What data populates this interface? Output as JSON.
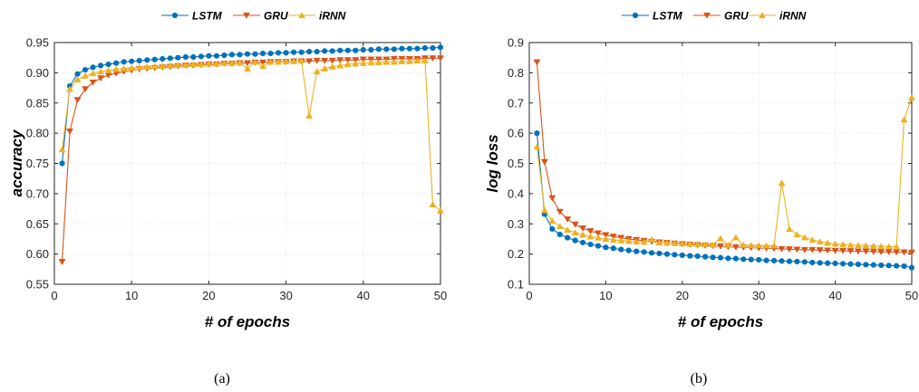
{
  "captions": [
    "(a)",
    "(b)"
  ],
  "chart_data": [
    {
      "type": "line",
      "xlabel": "# of epochs",
      "ylabel": "accuracy",
      "xlim": [
        0,
        50
      ],
      "ylim": [
        0.55,
        0.95
      ],
      "xticks": [
        0,
        10,
        20,
        30,
        40,
        50
      ],
      "yticks": [
        0.55,
        0.6,
        0.65,
        0.7,
        0.75,
        0.8,
        0.85,
        0.9,
        0.95
      ],
      "grid": true,
      "legend": "top-center",
      "x": [
        1,
        2,
        3,
        4,
        5,
        6,
        7,
        8,
        9,
        10,
        11,
        12,
        13,
        14,
        15,
        16,
        17,
        18,
        19,
        20,
        21,
        22,
        23,
        24,
        25,
        26,
        27,
        28,
        29,
        30,
        31,
        32,
        33,
        34,
        35,
        36,
        37,
        38,
        39,
        40,
        41,
        42,
        43,
        44,
        45,
        46,
        47,
        48,
        49,
        50
      ],
      "series": [
        {
          "name": "LSTM",
          "color": "#0072BD",
          "marker": "circle",
          "values": [
            0.75,
            0.878,
            0.898,
            0.905,
            0.909,
            0.912,
            0.914,
            0.916,
            0.918,
            0.919,
            0.92,
            0.921,
            0.922,
            0.923,
            0.924,
            0.925,
            0.926,
            0.926,
            0.927,
            0.928,
            0.928,
            0.929,
            0.93,
            0.93,
            0.931,
            0.931,
            0.932,
            0.932,
            0.933,
            0.933,
            0.934,
            0.934,
            0.935,
            0.935,
            0.936,
            0.936,
            0.937,
            0.937,
            0.937,
            0.938,
            0.938,
            0.939,
            0.939,
            0.939,
            0.94,
            0.94,
            0.94,
            0.941,
            0.941,
            0.942
          ]
        },
        {
          "name": "GRU",
          "color": "#D95319",
          "marker": "triangle-down",
          "values": [
            0.587,
            0.803,
            0.855,
            0.873,
            0.884,
            0.891,
            0.896,
            0.899,
            0.902,
            0.904,
            0.906,
            0.907,
            0.908,
            0.909,
            0.91,
            0.911,
            0.912,
            0.912,
            0.913,
            0.914,
            0.914,
            0.915,
            0.915,
            0.916,
            0.916,
            0.917,
            0.917,
            0.918,
            0.918,
            0.918,
            0.919,
            0.919,
            0.919,
            0.92,
            0.92,
            0.92,
            0.921,
            0.921,
            0.921,
            0.922,
            0.922,
            0.922,
            0.922,
            0.923,
            0.923,
            0.923,
            0.923,
            0.924,
            0.924,
            0.924
          ]
        },
        {
          "name": "iRNN",
          "color": "#EDB120",
          "marker": "triangle-up",
          "values": [
            0.773,
            0.873,
            0.889,
            0.895,
            0.899,
            0.902,
            0.904,
            0.906,
            0.907,
            0.908,
            0.909,
            0.91,
            0.911,
            0.911,
            0.912,
            0.913,
            0.913,
            0.914,
            0.914,
            0.915,
            0.915,
            0.916,
            0.916,
            0.917,
            0.907,
            0.918,
            0.911,
            0.918,
            0.918,
            0.919,
            0.919,
            0.92,
            0.829,
            0.902,
            0.907,
            0.91,
            0.912,
            0.914,
            0.915,
            0.916,
            0.917,
            0.917,
            0.918,
            0.918,
            0.919,
            0.919,
            0.92,
            0.92,
            0.682,
            0.672
          ]
        }
      ]
    },
    {
      "type": "line",
      "xlabel": "# of epochs",
      "ylabel": "log loss",
      "xlim": [
        0,
        50
      ],
      "ylim": [
        0.1,
        0.9
      ],
      "xticks": [
        0,
        10,
        20,
        30,
        40,
        50
      ],
      "yticks": [
        0.1,
        0.2,
        0.3,
        0.4,
        0.5,
        0.6,
        0.7,
        0.8,
        0.9
      ],
      "grid": true,
      "legend": "top-center",
      "x": [
        1,
        2,
        3,
        4,
        5,
        6,
        7,
        8,
        9,
        10,
        11,
        12,
        13,
        14,
        15,
        16,
        17,
        18,
        19,
        20,
        21,
        22,
        23,
        24,
        25,
        26,
        27,
        28,
        29,
        30,
        31,
        32,
        33,
        34,
        35,
        36,
        37,
        38,
        39,
        40,
        41,
        42,
        43,
        44,
        45,
        46,
        47,
        48,
        49,
        50
      ],
      "series": [
        {
          "name": "LSTM",
          "color": "#0072BD",
          "marker": "circle",
          "values": [
            0.6,
            0.332,
            0.283,
            0.265,
            0.254,
            0.245,
            0.238,
            0.232,
            0.227,
            0.222,
            0.219,
            0.215,
            0.212,
            0.209,
            0.207,
            0.204,
            0.202,
            0.2,
            0.198,
            0.196,
            0.194,
            0.193,
            0.191,
            0.189,
            0.188,
            0.186,
            0.185,
            0.183,
            0.182,
            0.181,
            0.179,
            0.178,
            0.177,
            0.176,
            0.175,
            0.174,
            0.172,
            0.171,
            0.17,
            0.169,
            0.168,
            0.167,
            0.166,
            0.165,
            0.164,
            0.163,
            0.162,
            0.161,
            0.16,
            0.155
          ]
        },
        {
          "name": "GRU",
          "color": "#D95319",
          "marker": "triangle-down",
          "values": [
            0.835,
            0.505,
            0.385,
            0.34,
            0.315,
            0.298,
            0.285,
            0.276,
            0.269,
            0.263,
            0.258,
            0.254,
            0.25,
            0.247,
            0.244,
            0.241,
            0.239,
            0.237,
            0.235,
            0.233,
            0.231,
            0.23,
            0.228,
            0.227,
            0.226,
            0.224,
            0.223,
            0.222,
            0.221,
            0.22,
            0.219,
            0.218,
            0.217,
            0.216,
            0.215,
            0.214,
            0.214,
            0.213,
            0.212,
            0.211,
            0.211,
            0.21,
            0.209,
            0.209,
            0.208,
            0.207,
            0.207,
            0.206,
            0.206,
            0.205
          ]
        },
        {
          "name": "iRNN",
          "color": "#EDB120",
          "marker": "triangle-up",
          "values": [
            0.555,
            0.345,
            0.31,
            0.292,
            0.28,
            0.271,
            0.264,
            0.258,
            0.254,
            0.25,
            0.247,
            0.245,
            0.243,
            0.241,
            0.24,
            0.248,
            0.238,
            0.237,
            0.236,
            0.235,
            0.234,
            0.233,
            0.232,
            0.231,
            0.252,
            0.23,
            0.255,
            0.23,
            0.229,
            0.229,
            0.228,
            0.228,
            0.435,
            0.283,
            0.265,
            0.255,
            0.247,
            0.241,
            0.237,
            0.234,
            0.232,
            0.23,
            0.229,
            0.228,
            0.227,
            0.226,
            0.225,
            0.224,
            0.645,
            0.718
          ]
        }
      ]
    }
  ]
}
